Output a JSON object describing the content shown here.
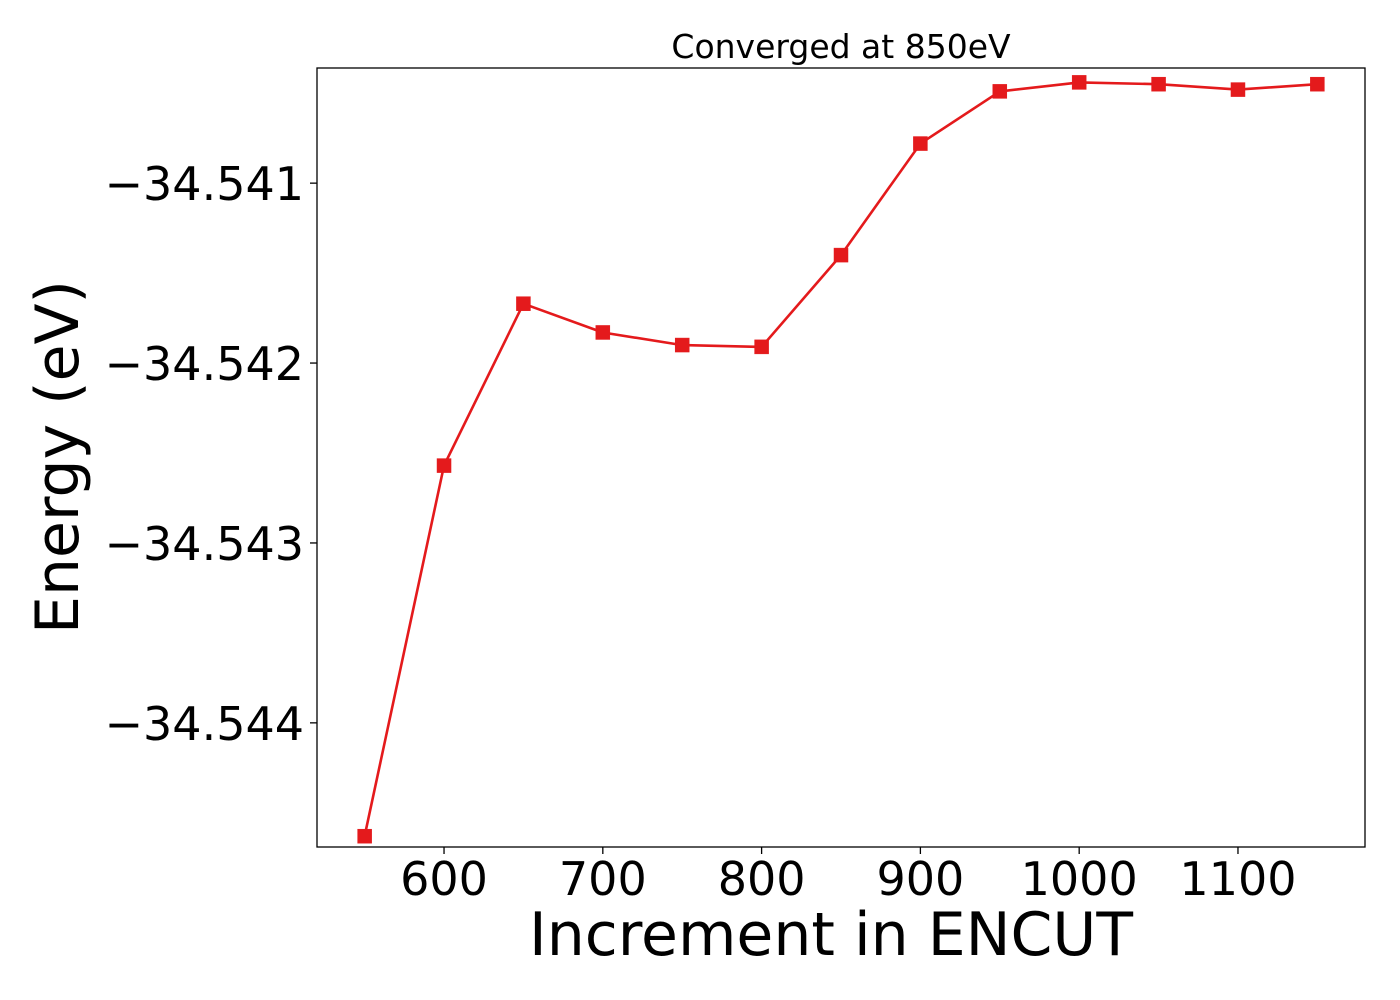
{
  "chart_data": {
    "type": "line",
    "title": "Converged at 850eV",
    "xlabel": "Increment in ENCUT",
    "ylabel": "Energy (eV)",
    "x": [
      550,
      600,
      650,
      700,
      750,
      800,
      850,
      900,
      950,
      1000,
      1050,
      1100,
      1150
    ],
    "series": [
      {
        "values": [
          -34.54463,
          -34.54257,
          -34.54167,
          -34.54183,
          -34.5419,
          -34.54191,
          -34.5414,
          -34.54078,
          -34.54049,
          -34.54044,
          -34.54045,
          -34.54048,
          -34.54045
        ],
        "color": "#e41a1c",
        "marker": "square"
      }
    ],
    "xticks": [
      600,
      700,
      800,
      900,
      1000,
      1100
    ],
    "xtick_labels": [
      "600",
      "700",
      "800",
      "900",
      "1000",
      "1100"
    ],
    "yticks": [
      -34.544,
      -34.543,
      -34.542,
      -34.541
    ],
    "ytick_labels": [
      "−34.544",
      "−34.543",
      "−34.542",
      "−34.541"
    ],
    "xlim": [
      520,
      1180
    ],
    "ylim": [
      -34.54469,
      -34.54036
    ],
    "grid": false,
    "legend": "none"
  }
}
